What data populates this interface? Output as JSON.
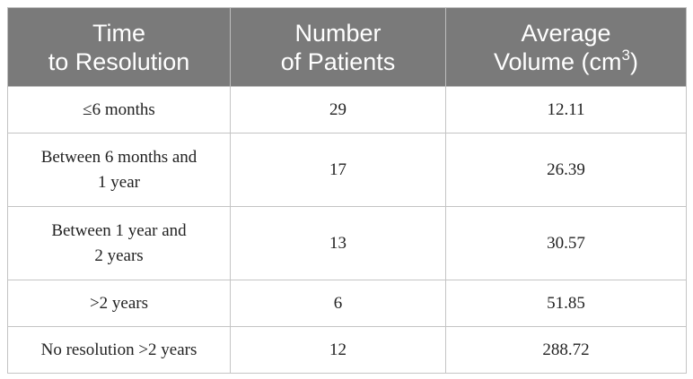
{
  "table": {
    "headers": [
      {
        "line1": "Time",
        "line2": "to Resolution",
        "sup": ""
      },
      {
        "line1": "Number",
        "line2": "of Patients",
        "sup": ""
      },
      {
        "line1": "Average",
        "line2": "Volume (cm",
        "sup": "3",
        "after": ")"
      }
    ],
    "rows": [
      {
        "time": [
          "≤6 months"
        ],
        "patients": "29",
        "volume": "12.11"
      },
      {
        "time": [
          "Between 6 months and",
          "1 year"
        ],
        "patients": "17",
        "volume": "26.39"
      },
      {
        "time": [
          "Between 1 year and",
          "2 years"
        ],
        "patients": "13",
        "volume": "30.57"
      },
      {
        "time": [
          ">2 years"
        ],
        "patients": "6",
        "volume": "51.85"
      },
      {
        "time": [
          "No resolution >2 years"
        ],
        "patients": "12",
        "volume": "288.72"
      }
    ]
  }
}
